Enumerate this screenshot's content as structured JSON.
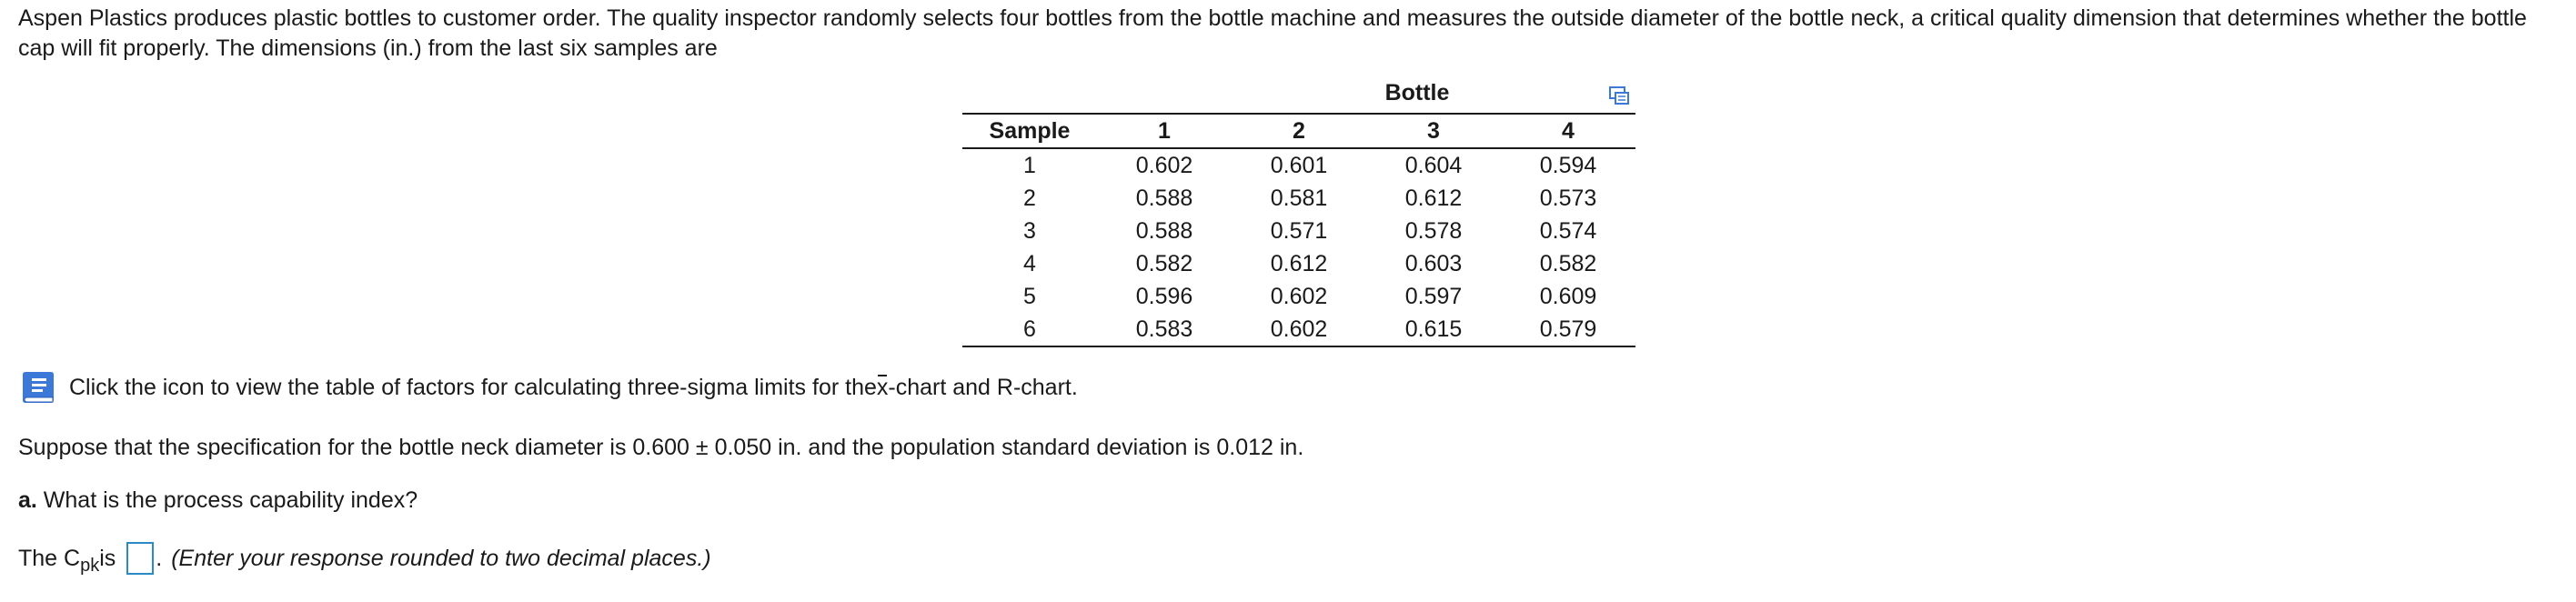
{
  "intro": "Aspen Plastics produces plastic bottles to customer order. The quality inspector randomly selects four bottles from the bottle machine and measures the outside diameter of the bottle neck, a critical quality dimension that determines whether the bottle cap will fit properly. The dimensions (in.) from the last six samples are",
  "table": {
    "group_header": "Bottle",
    "columns": [
      "Sample",
      "1",
      "2",
      "3",
      "4"
    ],
    "rows": [
      [
        "1",
        "0.602",
        "0.601",
        "0.604",
        "0.594"
      ],
      [
        "2",
        "0.588",
        "0.581",
        "0.612",
        "0.573"
      ],
      [
        "3",
        "0.588",
        "0.571",
        "0.578",
        "0.574"
      ],
      [
        "4",
        "0.582",
        "0.612",
        "0.603",
        "0.582"
      ],
      [
        "5",
        "0.596",
        "0.602",
        "0.597",
        "0.609"
      ],
      [
        "6",
        "0.583",
        "0.602",
        "0.615",
        "0.579"
      ]
    ]
  },
  "factors": {
    "before": "Click the icon to view the table of factors for calculating three-sigma limits for the ",
    "xbar": "x",
    "after": "-chart and R-chart."
  },
  "spec": "Suppose that the specification for the bottle neck diameter is 0.600 ± 0.050 in. and the population standard deviation is 0.012 in.",
  "question": {
    "label": "a.",
    "text": " What is the process capability index?"
  },
  "answer": {
    "prefix": "The C",
    "subscript": "pk",
    "is": " is",
    "value": "",
    "period": ".",
    "hint": "(Enter your response rounded to two decimal places.)"
  },
  "icons": {
    "book": "book-icon",
    "copy": "copy-icon",
    "accent": "#2a8ac6",
    "book_color": "#3b78d8"
  }
}
